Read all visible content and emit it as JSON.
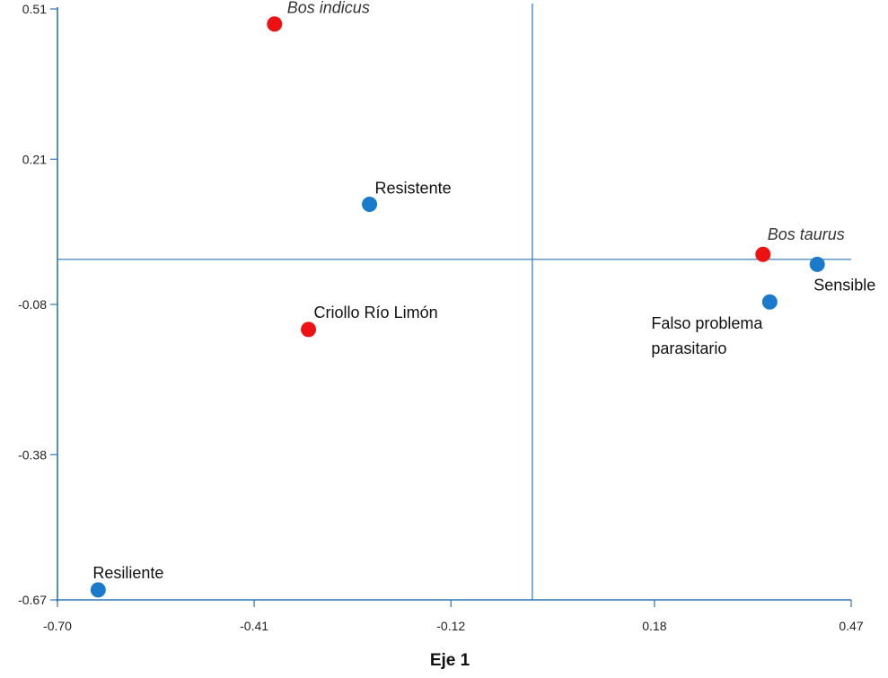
{
  "chart_data": {
    "type": "scatter",
    "title": "",
    "xlabel": "Eje 1",
    "ylabel": "",
    "xlim": [
      -0.7,
      0.47
    ],
    "ylim": [
      -0.67,
      0.51
    ],
    "x_ticks": [
      "-0.70",
      "-0.41",
      "-0.12",
      "0.18",
      "0.47"
    ],
    "y_ticks": [
      "0.51",
      "0.21",
      "-0.08",
      "-0.38",
      "-0.67"
    ],
    "reference_lines": {
      "x": 0.0,
      "y": 0.01
    },
    "colors": {
      "red": "#ee1111",
      "blue": "#1a7acc",
      "axis": "#2e75b6"
    },
    "points": [
      {
        "label": "Bos indicus",
        "x": -0.38,
        "y": 0.48,
        "color": "red",
        "italic": true
      },
      {
        "label": "Resistente",
        "x": -0.24,
        "y": 0.12,
        "color": "blue",
        "italic": false
      },
      {
        "label": "Criollo Río Limón",
        "x": -0.33,
        "y": -0.13,
        "color": "red",
        "italic": false
      },
      {
        "label": "Bos taurus",
        "x": 0.34,
        "y": 0.02,
        "color": "red",
        "italic": true
      },
      {
        "label": "Sensible",
        "x": 0.42,
        "y": 0.0,
        "color": "blue",
        "italic": false
      },
      {
        "label": "Falso problema",
        "label2": "parasitario",
        "x": 0.35,
        "y": -0.075,
        "color": "blue",
        "italic": false
      },
      {
        "label": "Resiliente",
        "x": -0.64,
        "y": -0.65,
        "color": "blue",
        "italic": false
      }
    ]
  }
}
